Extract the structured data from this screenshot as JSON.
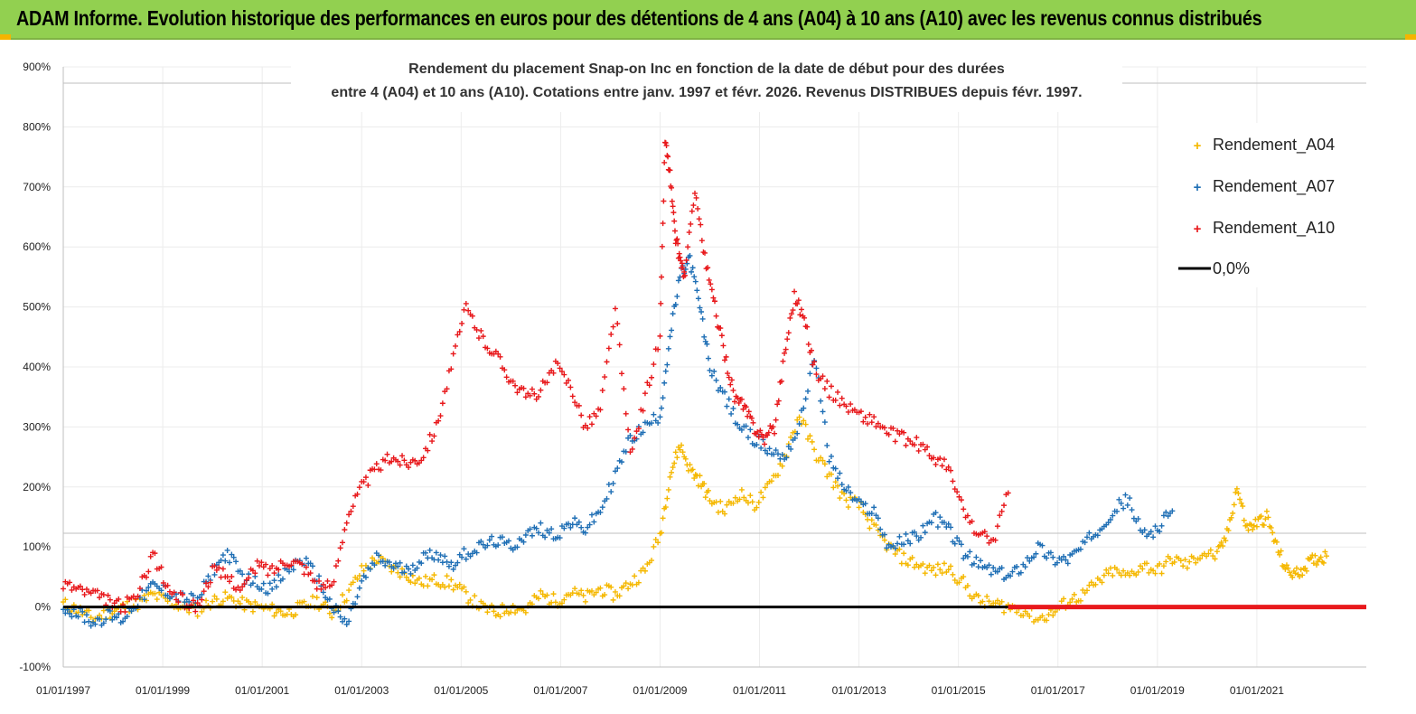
{
  "header": {
    "title": "ADAM Informe. Evolution historique des performances en euros pour des détentions de 4 ans (A04) à 10 ans (A10) avec les revenus connus distribués"
  },
  "colors": {
    "banner": "#92d050",
    "A04": "#f5b800",
    "A07": "#1f6fb5",
    "A10": "#e8191c",
    "zero": "#000000"
  },
  "chart_data": {
    "type": "scatter",
    "title": "Rendement du placement Snap-on Inc en fonction de la date de début pour des durées",
    "subtitle": "entre 4 (A04) et 10 ans (A10).  Cotations entre janv. 1997 et févr. 2026. Revenus DISTRIBUES depuis févr. 1997.",
    "ylim": [
      -100,
      900
    ],
    "xlim": [
      1997.0,
      2023.2
    ],
    "grid": true,
    "legend_position": "top-right",
    "y_ticks": [
      "-100%",
      "0%",
      "100%",
      "200%",
      "300%",
      "400%",
      "500%",
      "600%",
      "700%",
      "800%",
      "900%"
    ],
    "x_ticks": [
      "01/01/1997",
      "01/01/1999",
      "01/01/2001",
      "01/01/2003",
      "01/01/2005",
      "01/01/2007",
      "01/01/2009",
      "01/01/2011",
      "01/01/2013",
      "01/01/2015",
      "01/01/2017",
      "01/01/2019",
      "01/01/2021"
    ],
    "legend": [
      "Rendement_A04",
      "Rendement_A07",
      "Rendement_A10",
      "0,0%"
    ],
    "series": [
      {
        "name": "Rendement_A04",
        "x": [
          1997.0,
          1997.3,
          1997.6,
          1997.9,
          1998.2,
          1998.5,
          1998.8,
          1999.1,
          1999.4,
          1999.7,
          2000.0,
          2000.3,
          2000.6,
          2000.9,
          2001.2,
          2001.5,
          2001.8,
          2002.1,
          2002.4,
          2002.7,
          2003.0,
          2003.3,
          2003.6,
          2003.9,
          2004.2,
          2004.5,
          2004.8,
          2005.1,
          2005.4,
          2005.7,
          2006.0,
          2006.3,
          2006.6,
          2006.9,
          2007.2,
          2007.5,
          2007.8,
          2008.1,
          2008.4,
          2008.7,
          2009.0,
          2009.2,
          2009.4,
          2009.6,
          2009.8,
          2010.0,
          2010.3,
          2010.6,
          2010.9,
          2011.2,
          2011.5,
          2011.8,
          2012.1,
          2012.4,
          2012.7,
          2013.0,
          2013.3,
          2013.6,
          2013.9,
          2014.2,
          2014.5,
          2014.8,
          2015.1,
          2015.4,
          2015.7,
          2016.0,
          2016.3,
          2016.6,
          2016.9,
          2017.2,
          2017.5,
          2017.8,
          2018.1,
          2018.4,
          2018.7,
          2019.0,
          2019.3,
          2019.6,
          2019.9,
          2020.2,
          2020.4,
          2020.6,
          2020.8,
          2021.0,
          2021.2,
          2021.4,
          2021.6,
          2021.8,
          2022.0,
          2022.2,
          2022.4
        ],
        "y": [
          5,
          -5,
          -20,
          -10,
          0,
          5,
          20,
          10,
          0,
          -5,
          10,
          15,
          5,
          0,
          -5,
          -10,
          0,
          10,
          -10,
          20,
          60,
          80,
          65,
          55,
          40,
          45,
          40,
          20,
          0,
          -10,
          0,
          -5,
          20,
          10,
          25,
          15,
          30,
          20,
          40,
          60,
          120,
          220,
          270,
          230,
          210,
          180,
          160,
          190,
          170,
          200,
          250,
          320,
          260,
          220,
          180,
          170,
          130,
          100,
          80,
          70,
          60,
          65,
          40,
          10,
          5,
          0,
          -5,
          -20,
          -10,
          10,
          20,
          40,
          60,
          50,
          70,
          60,
          80,
          70,
          90,
          85,
          120,
          200,
          130,
          140,
          150,
          100,
          60,
          55,
          70,
          80,
          85
        ]
      },
      {
        "name": "Rendement_A07",
        "x": [
          1997.0,
          1997.3,
          1997.6,
          1997.9,
          1998.2,
          1998.5,
          1998.8,
          1999.1,
          1999.4,
          1999.7,
          2000.0,
          2000.3,
          2000.6,
          2000.9,
          2001.2,
          2001.5,
          2001.8,
          2002.1,
          2002.4,
          2002.7,
          2003.0,
          2003.3,
          2003.6,
          2003.9,
          2004.2,
          2004.5,
          2004.8,
          2005.1,
          2005.4,
          2005.7,
          2006.0,
          2006.3,
          2006.6,
          2006.9,
          2007.2,
          2007.5,
          2007.8,
          2008.1,
          2008.4,
          2008.7,
          2009.0,
          2009.2,
          2009.4,
          2009.6,
          2009.8,
          2010.0,
          2010.3,
          2010.6,
          2010.9,
          2011.2,
          2011.5,
          2011.8,
          2012.1,
          2012.4,
          2012.7,
          2013.0,
          2013.3,
          2013.6,
          2013.9,
          2014.2,
          2014.5,
          2014.8,
          2015.1,
          2015.4,
          2015.7,
          2016.0,
          2016.3,
          2016.6,
          2016.9,
          2017.2,
          2017.5,
          2017.8,
          2018.1,
          2018.4,
          2018.7,
          2019.0,
          2019.3
        ],
        "y": [
          0,
          -10,
          -25,
          -15,
          -20,
          10,
          35,
          25,
          15,
          10,
          60,
          90,
          50,
          40,
          30,
          60,
          80,
          50,
          0,
          -30,
          40,
          80,
          70,
          60,
          80,
          90,
          70,
          90,
          100,
          110,
          100,
          120,
          130,
          120,
          140,
          130,
          160,
          220,
          280,
          300,
          320,
          450,
          550,
          580,
          500,
          400,
          350,
          300,
          280,
          260,
          250,
          300,
          420,
          250,
          200,
          170,
          160,
          100,
          110,
          120,
          150,
          130,
          90,
          70,
          60,
          50,
          70,
          100,
          80,
          80,
          100,
          130,
          160,
          180,
          120,
          130,
          160
        ]
      },
      {
        "name": "Rendement_A10",
        "x": [
          1997.0,
          1997.3,
          1997.6,
          1997.9,
          1998.2,
          1998.5,
          1998.8,
          1999.1,
          1999.4,
          1999.7,
          2000.0,
          2000.3,
          2000.6,
          2000.9,
          2001.2,
          2001.5,
          2001.8,
          2002.1,
          2002.4,
          2002.7,
          2003.0,
          2003.3,
          2003.6,
          2003.9,
          2004.2,
          2004.5,
          2004.8,
          2005.1,
          2005.4,
          2005.7,
          2006.0,
          2006.3,
          2006.6,
          2006.9,
          2007.2,
          2007.5,
          2007.8,
          2008.1,
          2008.4,
          2008.7,
          2009.0,
          2009.1,
          2009.2,
          2009.3,
          2009.4,
          2009.5,
          2009.7,
          2009.9,
          2010.1,
          2010.3,
          2010.5,
          2010.7,
          2010.9,
          2011.1,
          2011.3,
          2011.5,
          2011.7,
          2011.9,
          2012.1,
          2012.4,
          2012.7,
          2013.0,
          2013.3,
          2013.6,
          2013.9,
          2014.2,
          2014.5,
          2014.8,
          2015.1,
          2015.4,
          2015.7,
          2016.0
        ],
        "y": [
          40,
          30,
          20,
          10,
          0,
          20,
          90,
          30,
          10,
          0,
          60,
          50,
          30,
          70,
          60,
          80,
          70,
          40,
          30,
          150,
          200,
          230,
          250,
          240,
          250,
          300,
          400,
          500,
          450,
          420,
          380,
          350,
          360,
          400,
          370,
          300,
          330,
          500,
          250,
          350,
          450,
          780,
          720,
          620,
          580,
          550,
          700,
          580,
          500,
          420,
          350,
          330,
          300,
          280,
          300,
          420,
          520,
          480,
          400,
          360,
          340,
          320,
          310,
          290,
          280,
          270,
          250,
          230,
          160,
          120,
          110,
          190
        ]
      },
      {
        "name": "0,0%",
        "x": [
          1997.0,
          2016.0
        ],
        "y": [
          0,
          0
        ]
      },
      {
        "name": "Rendement_A10",
        "x": [
          2016.0,
          2023.2
        ],
        "y": [
          0,
          0
        ]
      }
    ]
  }
}
